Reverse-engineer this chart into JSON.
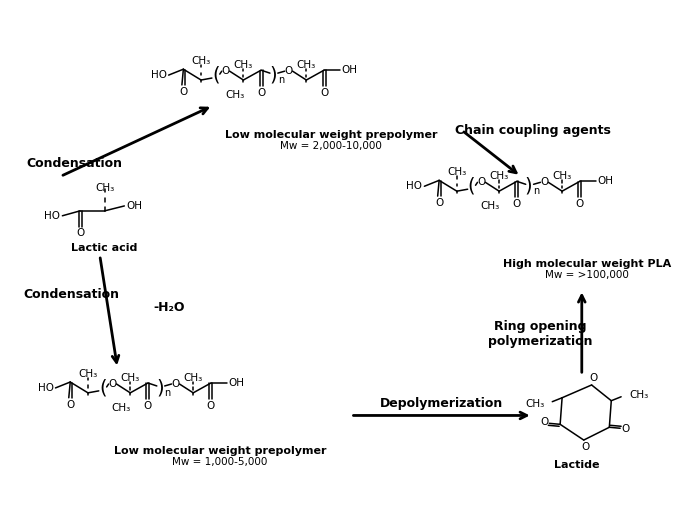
{
  "bg_color": "#ffffff",
  "fig_width": 6.91,
  "fig_height": 5.25,
  "dpi": 100,
  "labels": {
    "condensation_top": "Condensation",
    "chain_coupling": "Chain coupling agents",
    "lactic_acid": "Lactic acid",
    "low_mw_top": "Low molecular weight prepolymer",
    "low_mw_top_sub": "Mw = 2,000-10,000",
    "high_mw": "High molecular weight PLA",
    "high_mw_sub": "Mw = >100,000",
    "condensation_bottom": "Condensation",
    "minus_h2o": "-H₂O",
    "low_mw_bottom": "Low molecular weight prepolymer",
    "low_mw_bottom_sub": "Mw = 1,000-5,000",
    "depolymerization": "Depolymerization",
    "ring_opening": "Ring opening\npolymerization",
    "lactide": "Lactide"
  }
}
